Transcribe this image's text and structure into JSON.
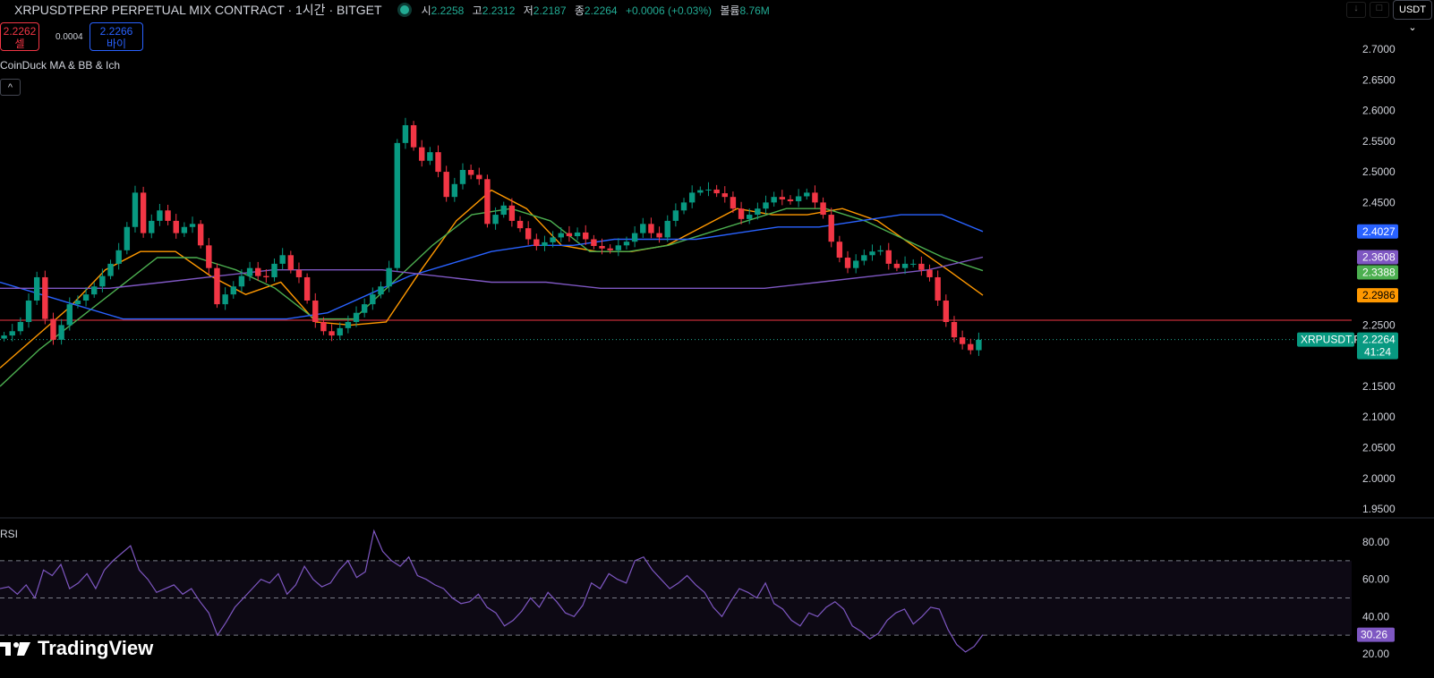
{
  "header": {
    "symbol": "XRPUSDTPERP PERPETUAL MIX CONTRACT · 1시간 · BITGET",
    "open_label": "시",
    "open": "2.2258",
    "high_label": "고",
    "high": "2.2312",
    "low_label": "저",
    "low": "2.2187",
    "close_label": "종",
    "close": "2.2264",
    "change": "+0.0006 (+0.03%)",
    "volume_label": "볼륨",
    "volume": "8.76M",
    "currency": "USDT ⌄",
    "tool1": "↓",
    "tool2": "□"
  },
  "trade": {
    "sell_price": "2.2262",
    "sell_label": "셀",
    "spread": "0.0004",
    "buy_price": "2.2266",
    "buy_label": "바이"
  },
  "indicator": {
    "name": "CoinDuck MA & BB & Ich",
    "collapse": "^"
  },
  "rsi_label": "RSI",
  "logo": "TradingView",
  "colors": {
    "up": "#089981",
    "down": "#f23645",
    "ma_fast": "#ff9800",
    "ma_mid": "#4caf50",
    "ma_slow": "#2962ff",
    "ma_long": "#7e57c2",
    "rsi": "#7e57c2"
  },
  "chart_data": [
    {
      "type": "candlestick",
      "title": "XRPUSDTPERP 1H",
      "ylim": [
        1.95,
        2.7
      ],
      "yticks": [
        "2.7000",
        "2.6500",
        "2.6000",
        "2.5500",
        "2.5000",
        "2.4500",
        "2.4000",
        "2.3500",
        "2.3000",
        "2.2500",
        "2.2000",
        "2.1500",
        "2.1000",
        "2.0500",
        "2.0000",
        "1.9500"
      ],
      "closes": [
        2.233,
        2.24,
        2.255,
        2.29,
        2.328,
        2.26,
        2.226,
        2.25,
        2.284,
        2.29,
        2.3,
        2.313,
        2.33,
        2.35,
        2.372,
        2.41,
        2.466,
        2.4,
        2.42,
        2.437,
        2.42,
        2.4,
        2.41,
        2.415,
        2.38,
        2.343,
        2.284,
        2.3,
        2.313,
        2.33,
        2.343,
        2.33,
        2.328,
        2.35,
        2.364,
        2.34,
        2.328,
        2.29,
        2.255,
        2.24,
        2.233,
        2.245,
        2.255,
        2.27,
        2.284,
        2.3,
        2.313,
        2.343,
        2.547,
        2.576,
        2.54,
        2.518,
        2.532,
        2.5,
        2.459,
        2.48,
        2.503,
        2.495,
        2.488,
        2.415,
        2.43,
        2.445,
        2.42,
        2.408,
        2.39,
        2.379,
        2.385,
        2.393,
        2.4,
        2.395,
        2.401,
        2.39,
        2.379,
        2.375,
        2.372,
        2.38,
        2.386,
        2.4,
        2.415,
        2.4,
        2.393,
        2.42,
        2.437,
        2.45,
        2.466,
        2.47,
        2.471,
        2.465,
        2.459,
        2.44,
        2.423,
        2.43,
        2.44,
        2.45,
        2.459,
        2.455,
        2.452,
        2.46,
        2.466,
        2.45,
        2.43,
        2.386,
        2.36,
        2.343,
        2.355,
        2.364,
        2.37,
        2.372,
        2.35,
        2.343,
        2.35,
        2.35,
        2.34,
        2.328,
        2.29,
        2.255,
        2.23,
        2.219,
        2.209,
        2.226
      ],
      "last_price": "2.2264",
      "last_value": 2.2264,
      "countdown": "41:24",
      "symbol_tag": "XRPUSDT.P",
      "hline_value": 2.258,
      "ma": [
        {
          "name": "MA fast",
          "label": "2.2986",
          "color": "#ff9800",
          "values": [
            2.18,
            2.23,
            2.28,
            2.34,
            2.37,
            2.37,
            2.33,
            2.3,
            2.32,
            2.255,
            2.25,
            2.255,
            2.34,
            2.42,
            2.47,
            2.44,
            2.38,
            2.37,
            2.37,
            2.38,
            2.41,
            2.44,
            2.43,
            2.43,
            2.44,
            2.42,
            2.38,
            2.34,
            2.2986
          ]
        },
        {
          "name": "MA mid",
          "label": "2.3388",
          "color": "#4caf50",
          "values": [
            2.15,
            2.21,
            2.26,
            2.31,
            2.36,
            2.36,
            2.34,
            2.31,
            2.26,
            2.26,
            2.32,
            2.38,
            2.43,
            2.44,
            2.42,
            2.37,
            2.37,
            2.38,
            2.4,
            2.42,
            2.44,
            2.44,
            2.42,
            2.39,
            2.36,
            2.3388
          ]
        },
        {
          "name": "MA slow",
          "label": "2.4027",
          "color": "#2962ff",
          "values": [
            2.32,
            2.3,
            2.28,
            2.26,
            2.26,
            2.26,
            2.26,
            2.26,
            2.27,
            2.3,
            2.33,
            2.35,
            2.37,
            2.38,
            2.38,
            2.39,
            2.39,
            2.39,
            2.4,
            2.41,
            2.41,
            2.42,
            2.43,
            2.43,
            2.4027
          ]
        },
        {
          "name": "MA long",
          "label": "2.3608",
          "color": "#7e57c2",
          "values": [
            2.31,
            2.31,
            2.31,
            2.32,
            2.33,
            2.34,
            2.34,
            2.34,
            2.33,
            2.32,
            2.32,
            2.31,
            2.31,
            2.31,
            2.31,
            2.32,
            2.33,
            2.34,
            2.3608
          ]
        }
      ]
    },
    {
      "type": "line",
      "title": "RSI",
      "ylim": [
        15,
        88
      ],
      "yticks": [
        "80.00",
        "60.00",
        "40.00",
        "20.00"
      ],
      "bands": [
        30,
        50,
        70
      ],
      "last_label": "30.26",
      "values": [
        55,
        56,
        52,
        57,
        50,
        65,
        62,
        68,
        55,
        58,
        63,
        55,
        65,
        70,
        74,
        78,
        65,
        60,
        53,
        55,
        57,
        52,
        55,
        48,
        42,
        30,
        37,
        45,
        50,
        55,
        60,
        58,
        63,
        52,
        57,
        67,
        60,
        56,
        58,
        65,
        70,
        61,
        64,
        86,
        75,
        70,
        67,
        72,
        62,
        60,
        57,
        55,
        50,
        47,
        48,
        52,
        45,
        42,
        35,
        38,
        43,
        50,
        45,
        53,
        48,
        42,
        40,
        46,
        58,
        55,
        63,
        60,
        58,
        70,
        72,
        65,
        60,
        55,
        58,
        62,
        57,
        53,
        45,
        40,
        48,
        55,
        53,
        50,
        58,
        47,
        44,
        38,
        35,
        42,
        40,
        45,
        48,
        44,
        35,
        32,
        28,
        31,
        38,
        42,
        44,
        36,
        40,
        45,
        44,
        33,
        25,
        21,
        24,
        30.26
      ]
    }
  ]
}
